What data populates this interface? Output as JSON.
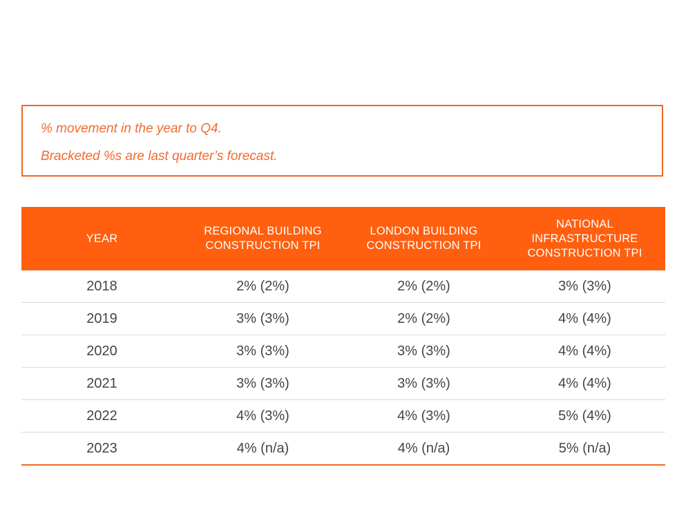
{
  "note": {
    "line1": "% movement in the year to Q4.",
    "line2": "Bracketed %s are last quarter’s forecast."
  },
  "table": {
    "headers": [
      "YEAR",
      "REGIONAL BUILDING CONSTRUCTION TPI",
      "LONDON BUILDING CONSTRUCTION TPI",
      "NATIONAL INFRASTRUCTURE CONSTRUCTION TPI"
    ],
    "rows": [
      [
        "2018",
        "2% (2%)",
        "2% (2%)",
        "3% (3%)"
      ],
      [
        "2019",
        "3% (3%)",
        "2% (2%)",
        "4% (4%)"
      ],
      [
        "2020",
        "3% (3%)",
        "3% (3%)",
        "4% (4%)"
      ],
      [
        "2021",
        "3% (3%)",
        "3% (3%)",
        "4% (4%)"
      ],
      [
        "2022",
        "4% (3%)",
        "4% (3%)",
        "5% (4%)"
      ],
      [
        "2023",
        "4% (n/a)",
        "4% (n/a)",
        "5% (n/a)"
      ]
    ]
  },
  "colors": {
    "accent": "#ff5f0f",
    "note_text": "#f26a2c",
    "cell_text": "#444444",
    "row_divider": "#d9d9d9"
  }
}
